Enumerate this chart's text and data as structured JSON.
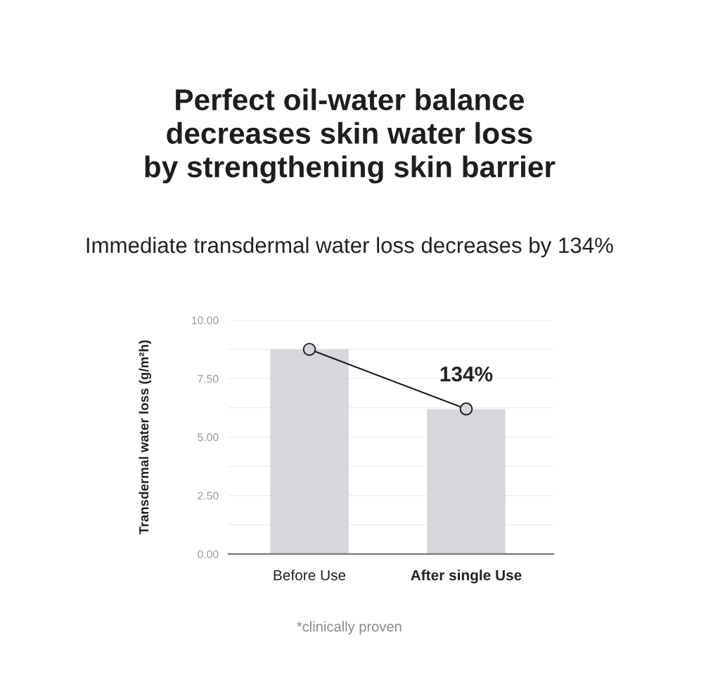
{
  "chart_data": {
    "type": "bar",
    "title": "Perfect oil-water balance\ndecreases skin water loss\nby strengthening skin barrier",
    "subtitle": "Immediate transdermal water loss decreases by 134%",
    "ylabel": "Transdermal water loss (g/m²h)",
    "categories": [
      "Before Use",
      "After single Use"
    ],
    "series": [
      {
        "color": "#d6d7dc",
        "values": [
          8.75,
          6.2
        ]
      },
      {
        "type": "line",
        "color": "#1e1e1e",
        "values": [
          8.75,
          6.2
        ]
      }
    ],
    "marker": "circle",
    "line_style": "solid",
    "ylim": [
      0,
      10
    ],
    "yticks": [
      {
        "value": 0,
        "label": "0.00"
      },
      {
        "value": 1.25,
        "label": null
      },
      {
        "value": 2.5,
        "label": "2.50"
      },
      {
        "value": 3.75,
        "label": null
      },
      {
        "value": 5,
        "label": "5.00"
      },
      {
        "value": 6.25,
        "label": null
      },
      {
        "value": 7.5,
        "label": "7.50"
      },
      {
        "value": 8.75,
        "label": null
      },
      {
        "value": 10,
        "label": "10.00"
      }
    ],
    "grid": "y",
    "annotations": [
      "134%",
      "*clinically proven"
    ]
  }
}
